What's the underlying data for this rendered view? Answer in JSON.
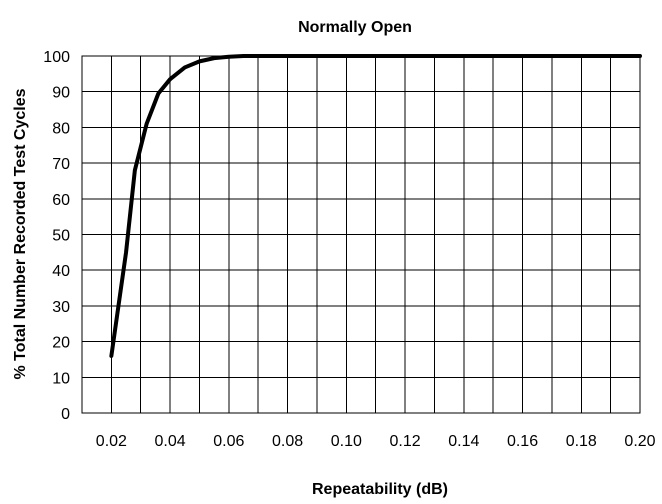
{
  "chart_data": {
    "type": "line",
    "title": "Normally Open",
    "xlabel": "Repeatability (dB)",
    "ylabel": "% Total Number Recorded Test Cycles",
    "xlim": [
      0.01,
      0.2
    ],
    "ylim": [
      0,
      100
    ],
    "grid": true,
    "x_ticks": [
      {
        "value": 0.02,
        "label": "0.02"
      },
      {
        "value": 0.04,
        "label": "0.04"
      },
      {
        "value": 0.06,
        "label": "0.06"
      },
      {
        "value": 0.08,
        "label": "0.08"
      },
      {
        "value": 0.1,
        "label": "0.10"
      },
      {
        "value": 0.12,
        "label": "0.12"
      },
      {
        "value": 0.14,
        "label": "0.14"
      },
      {
        "value": 0.16,
        "label": "0.16"
      },
      {
        "value": 0.18,
        "label": "0.18"
      },
      {
        "value": 0.2,
        "label": "0.20"
      }
    ],
    "y_ticks": [
      {
        "value": 0,
        "label": "0"
      },
      {
        "value": 10,
        "label": "10"
      },
      {
        "value": 20,
        "label": "20"
      },
      {
        "value": 30,
        "label": "30"
      },
      {
        "value": 40,
        "label": "40"
      },
      {
        "value": 50,
        "label": "50"
      },
      {
        "value": 60,
        "label": "60"
      },
      {
        "value": 70,
        "label": "70"
      },
      {
        "value": 80,
        "label": "80"
      },
      {
        "value": 90,
        "label": "90"
      },
      {
        "value": 100,
        "label": "100"
      }
    ],
    "x_grid_step": 0.01,
    "y_grid_step": 10,
    "series": [
      {
        "x": [
          0.02,
          0.025,
          0.028,
          0.032,
          0.036,
          0.04,
          0.045,
          0.05,
          0.055,
          0.06,
          0.065,
          0.07,
          0.08,
          0.1,
          0.12,
          0.14,
          0.16,
          0.18,
          0.2
        ],
        "y": [
          16,
          45,
          68,
          81,
          89.5,
          93.5,
          96.8,
          98.5,
          99.4,
          99.8,
          100,
          100,
          100,
          100,
          100,
          100,
          100,
          100,
          100
        ]
      }
    ]
  }
}
